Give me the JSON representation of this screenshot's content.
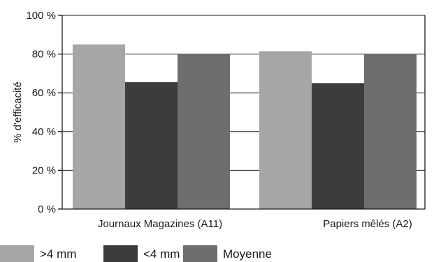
{
  "chart_data": {
    "type": "bar",
    "ylabel": "% d'efficacité",
    "y_ticks": [
      "0 %",
      "20 %",
      "40 %",
      "60 %",
      "80 %",
      "100 %"
    ],
    "ylim": [
      0,
      100
    ],
    "grid": true,
    "legend_position": "bottom",
    "categories": [
      "Journaux Magazines (A11)",
      "Papiers mêlés (A2)"
    ],
    "series": [
      {
        "name": ">4 mm",
        "color": "#a6a6a8",
        "values": [
          85,
          81.5
        ]
      },
      {
        "name": "<4 mm",
        "color": "#3c3c3c",
        "values": [
          65.5,
          65
        ]
      },
      {
        "name": "Moyenne",
        "color": "#6e6e70",
        "values": [
          80,
          80
        ]
      }
    ]
  }
}
